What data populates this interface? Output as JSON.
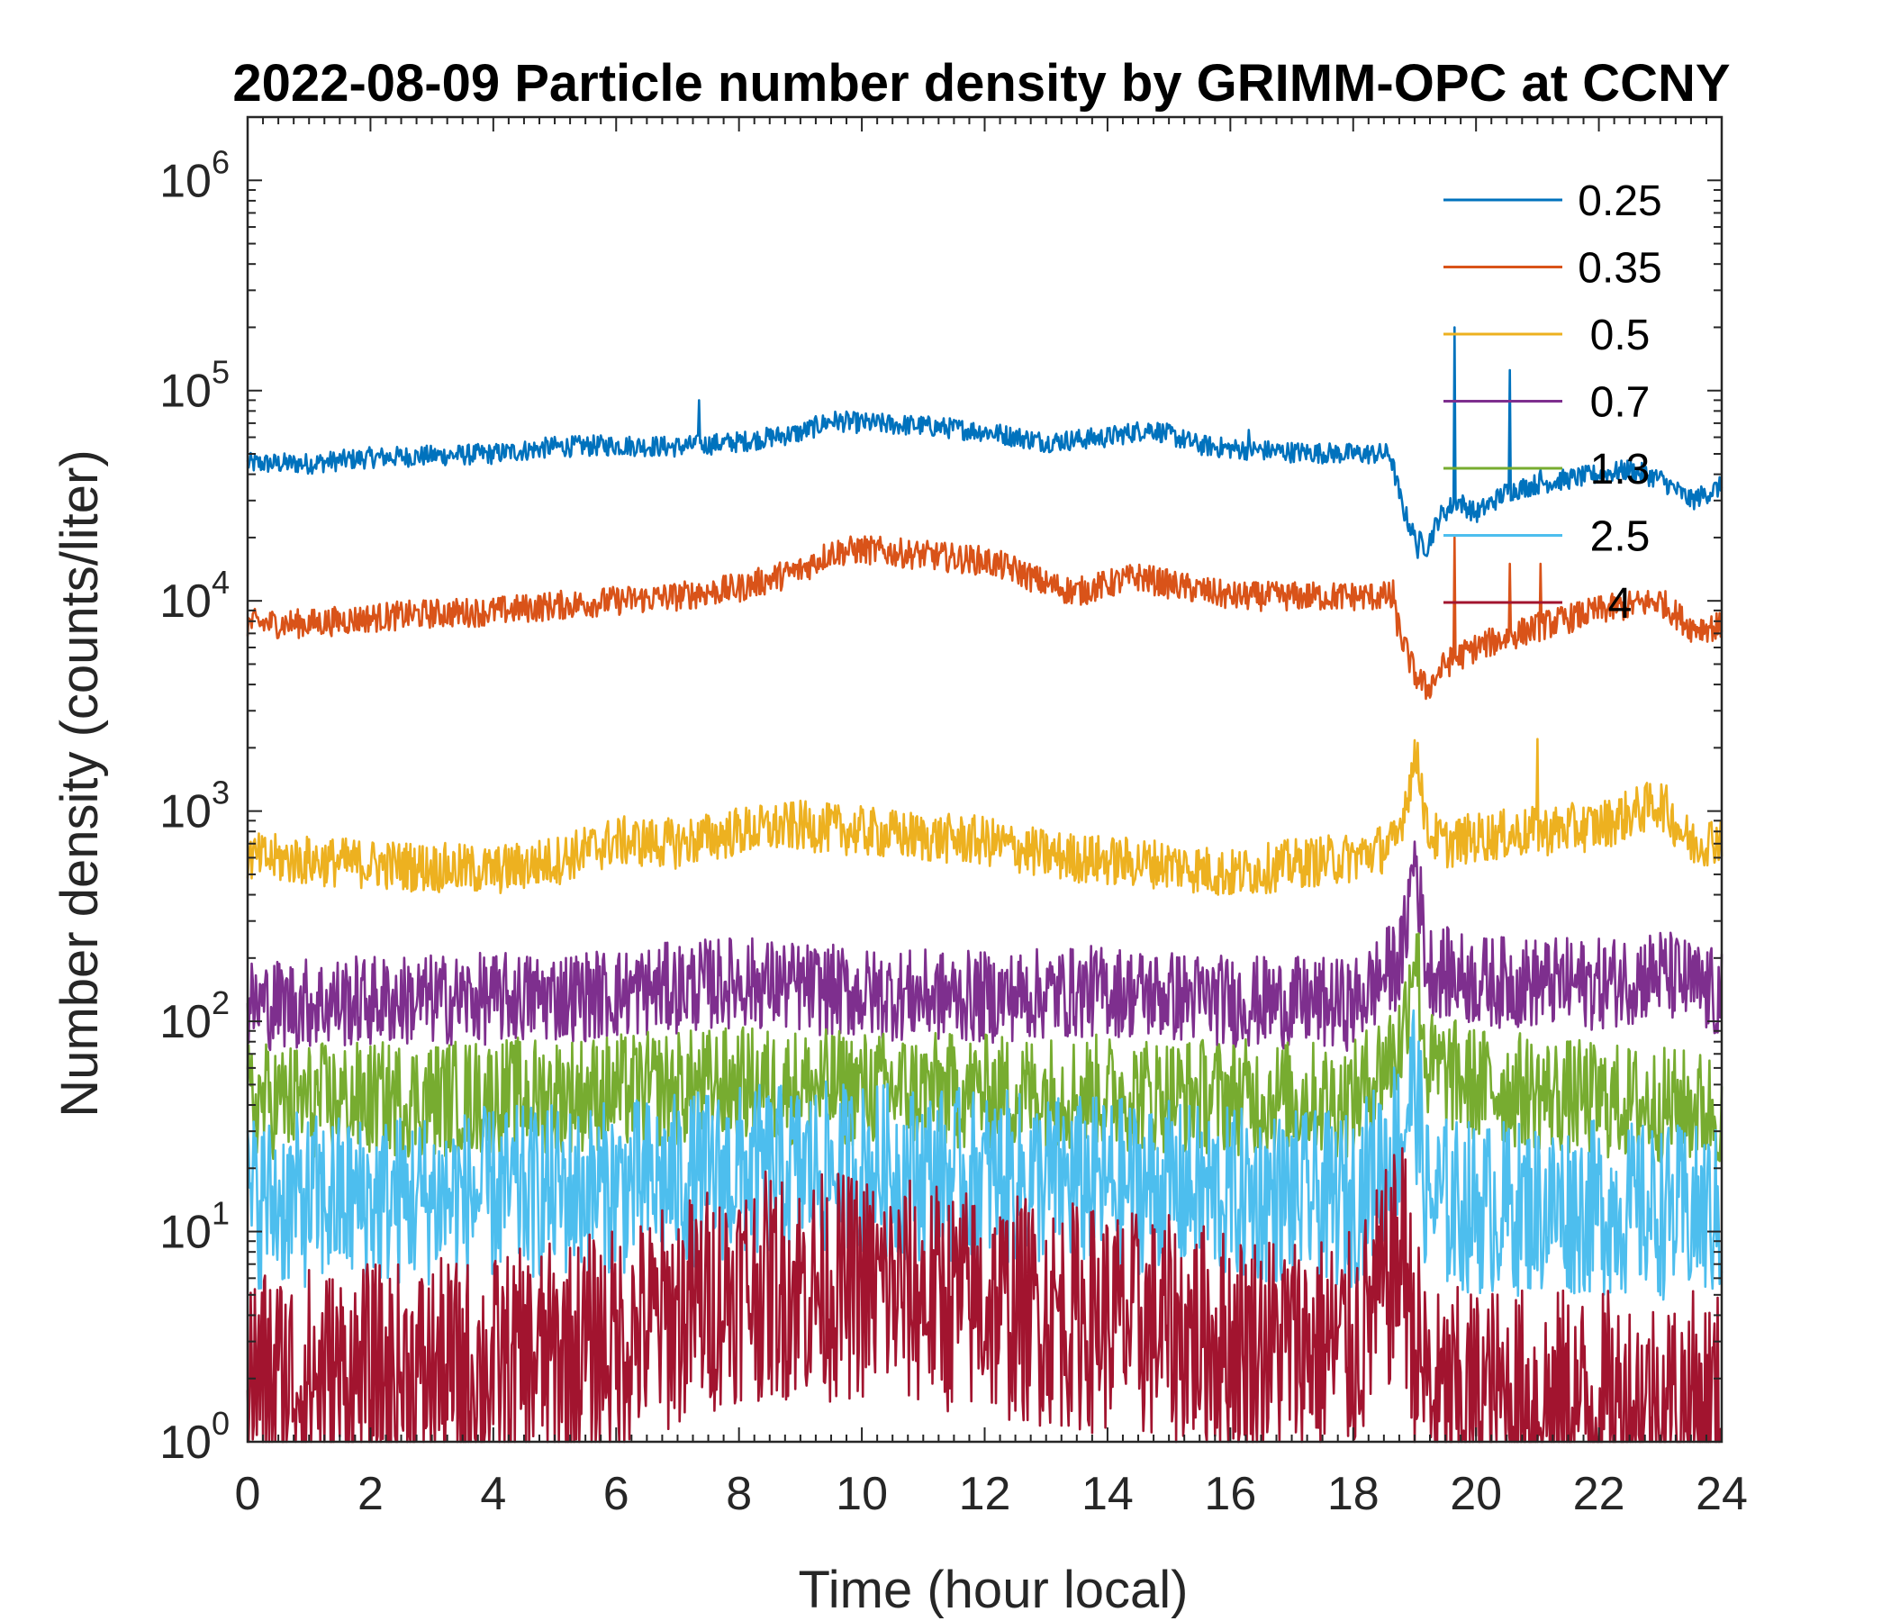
{
  "chart_data": {
    "type": "line",
    "title": "2022-08-09 Particle number density by GRIMM-OPC at CCNY",
    "xlabel": "Time (hour local)",
    "ylabel": "Number density (counts/liter)",
    "xlim": [
      0,
      24
    ],
    "ylim": [
      1,
      2000000
    ],
    "yscale": "log",
    "xticks": [
      0,
      2,
      4,
      6,
      8,
      10,
      12,
      14,
      16,
      18,
      20,
      22,
      24
    ],
    "xtick_labels": [
      "0",
      "2",
      "4",
      "6",
      "8",
      "10",
      "12",
      "14",
      "16",
      "18",
      "20",
      "22",
      "24"
    ],
    "yticks": [
      1,
      10,
      100,
      1000,
      10000,
      100000,
      1000000
    ],
    "ytick_labels": [
      {
        "base": "10",
        "exp": "0"
      },
      {
        "base": "10",
        "exp": "1"
      },
      {
        "base": "10",
        "exp": "2"
      },
      {
        "base": "10",
        "exp": "3"
      },
      {
        "base": "10",
        "exp": "4"
      },
      {
        "base": "10",
        "exp": "5"
      },
      {
        "base": "10",
        "exp": "6"
      }
    ],
    "legend_location": "top-right",
    "series": [
      {
        "name": "0.25",
        "color": "#0072BD",
        "noise": 0.05,
        "points": [
          [
            0,
            45000
          ],
          [
            1,
            45000
          ],
          [
            2,
            48000
          ],
          [
            3,
            49000
          ],
          [
            4,
            50000
          ],
          [
            5,
            54000
          ],
          [
            6,
            55000
          ],
          [
            7,
            54000
          ],
          [
            8,
            57000
          ],
          [
            9,
            63000
          ],
          [
            9.5,
            72000
          ],
          [
            10,
            70000
          ],
          [
            11,
            68000
          ],
          [
            12,
            64000
          ],
          [
            13,
            57000
          ],
          [
            14,
            60000
          ],
          [
            14.7,
            66000
          ],
          [
            15.5,
            55000
          ],
          [
            16,
            53000
          ],
          [
            17,
            51000
          ],
          [
            18,
            50000
          ],
          [
            18.6,
            50000
          ],
          [
            18.8,
            28000
          ],
          [
            19,
            20000
          ],
          [
            19.2,
            18000
          ],
          [
            19.4,
            25000
          ],
          [
            19.7,
            30000
          ],
          [
            20,
            26000
          ],
          [
            20.5,
            33000
          ],
          [
            21,
            36000
          ],
          [
            22,
            40000
          ],
          [
            22.5,
            42000
          ],
          [
            23,
            38000
          ],
          [
            23.5,
            30000
          ],
          [
            24,
            35000
          ]
        ],
        "spikes": [
          [
            7.35,
            90000
          ],
          [
            16.3,
            65000
          ],
          [
            19.05,
            16000
          ],
          [
            19.65,
            200000
          ],
          [
            20.55,
            125000
          ],
          [
            21.05,
            42000
          ]
        ]
      },
      {
        "name": "0.35",
        "color": "#D95319",
        "noise": 0.07,
        "points": [
          [
            0,
            7800
          ],
          [
            1,
            7800
          ],
          [
            2,
            8300
          ],
          [
            3,
            8700
          ],
          [
            4,
            8900
          ],
          [
            5,
            9500
          ],
          [
            6,
            10000
          ],
          [
            7,
            10500
          ],
          [
            8,
            11500
          ],
          [
            9,
            14000
          ],
          [
            9.5,
            17000
          ],
          [
            10,
            17500
          ],
          [
            10.5,
            17000
          ],
          [
            11,
            16500
          ],
          [
            12,
            15500
          ],
          [
            12.5,
            14000
          ],
          [
            13,
            12000
          ],
          [
            13.5,
            11000
          ],
          [
            14,
            12000
          ],
          [
            14.5,
            13000
          ],
          [
            15,
            12000
          ],
          [
            16,
            10500
          ],
          [
            17,
            10500
          ],
          [
            18,
            10500
          ],
          [
            18.6,
            10500
          ],
          [
            18.8,
            6500
          ],
          [
            19,
            4500
          ],
          [
            19.2,
            3800
          ],
          [
            19.5,
            5000
          ],
          [
            20,
            6000
          ],
          [
            21,
            7500
          ],
          [
            22,
            9000
          ],
          [
            22.5,
            9500
          ],
          [
            23,
            10000
          ],
          [
            23.5,
            7500
          ],
          [
            24,
            7500
          ]
        ],
        "spikes": [
          [
            7.35,
            12000
          ],
          [
            19.65,
            20000
          ],
          [
            20.55,
            15000
          ],
          [
            21.05,
            15000
          ],
          [
            18.65,
            12500
          ]
        ]
      },
      {
        "name": "0.5",
        "color": "#EDB120",
        "noise": 0.12,
        "points": [
          [
            0,
            600
          ],
          [
            1,
            580
          ],
          [
            2,
            560
          ],
          [
            3,
            540
          ],
          [
            4,
            520
          ],
          [
            5,
            580
          ],
          [
            6,
            720
          ],
          [
            7,
            700
          ],
          [
            8,
            800
          ],
          [
            9,
            850
          ],
          [
            10,
            800
          ],
          [
            11,
            750
          ],
          [
            12,
            720
          ],
          [
            13,
            620
          ],
          [
            14,
            580
          ],
          [
            15,
            560
          ],
          [
            16,
            500
          ],
          [
            17,
            560
          ],
          [
            18,
            600
          ],
          [
            18.7,
            700
          ],
          [
            18.9,
            1300
          ],
          [
            19.05,
            1900
          ],
          [
            19.2,
            800
          ],
          [
            19.5,
            700
          ],
          [
            20,
            750
          ],
          [
            21,
            800
          ],
          [
            22,
            850
          ],
          [
            23,
            1100
          ],
          [
            23.5,
            700
          ],
          [
            24,
            750
          ]
        ],
        "spikes": [
          [
            21.0,
            2200
          ]
        ]
      },
      {
        "name": "0.7",
        "color": "#7E2F8E",
        "noise": 0.22,
        "points": [
          [
            0,
            120
          ],
          [
            2,
            125
          ],
          [
            4,
            128
          ],
          [
            6,
            135
          ],
          [
            8,
            155
          ],
          [
            10,
            135
          ],
          [
            12,
            130
          ],
          [
            14,
            140
          ],
          [
            16,
            125
          ],
          [
            18,
            120
          ],
          [
            18.8,
            200
          ],
          [
            19.0,
            650
          ],
          [
            19.2,
            180
          ],
          [
            20,
            155
          ],
          [
            22,
            150
          ],
          [
            23,
            170
          ],
          [
            24,
            130
          ]
        ],
        "spikes": []
      },
      {
        "name": "1.3",
        "color": "#77AC30",
        "noise": 0.28,
        "points": [
          [
            0,
            42
          ],
          [
            2,
            42
          ],
          [
            4,
            44
          ],
          [
            6,
            46
          ],
          [
            8,
            50
          ],
          [
            10,
            48
          ],
          [
            12,
            46
          ],
          [
            14,
            46
          ],
          [
            16,
            44
          ],
          [
            18,
            42
          ],
          [
            18.8,
            80
          ],
          [
            19.0,
            250
          ],
          [
            19.2,
            60
          ],
          [
            20,
            50
          ],
          [
            22,
            42
          ],
          [
            24,
            38
          ]
        ],
        "spikes": []
      },
      {
        "name": "2.5",
        "color": "#4DBEEE",
        "noise": 0.42,
        "points": [
          [
            0,
            14
          ],
          [
            2,
            14
          ],
          [
            4,
            15
          ],
          [
            6,
            16
          ],
          [
            8,
            19
          ],
          [
            10,
            20
          ],
          [
            12,
            18
          ],
          [
            14,
            17
          ],
          [
            16,
            15
          ],
          [
            18,
            14
          ],
          [
            18.8,
            30
          ],
          [
            19.0,
            55
          ],
          [
            19.2,
            14
          ],
          [
            20,
            13
          ],
          [
            22,
            13
          ],
          [
            24,
            12
          ]
        ],
        "spikes": []
      },
      {
        "name": "4",
        "color": "#A2142F",
        "noise": 0.55,
        "points": [
          [
            0,
            2
          ],
          [
            2,
            2
          ],
          [
            4,
            2.2
          ],
          [
            6,
            3
          ],
          [
            8,
            5.5
          ],
          [
            10,
            5.5
          ],
          [
            12,
            4.5
          ],
          [
            14,
            3.8
          ],
          [
            16,
            3
          ],
          [
            18,
            2.8
          ],
          [
            18.8,
            8
          ],
          [
            19.0,
            3
          ],
          [
            19.3,
            1.5
          ],
          [
            20,
            1.6
          ],
          [
            22,
            1.5
          ],
          [
            24,
            1.5
          ]
        ],
        "spikes": [
          [
            18.85,
            22
          ]
        ]
      }
    ]
  }
}
